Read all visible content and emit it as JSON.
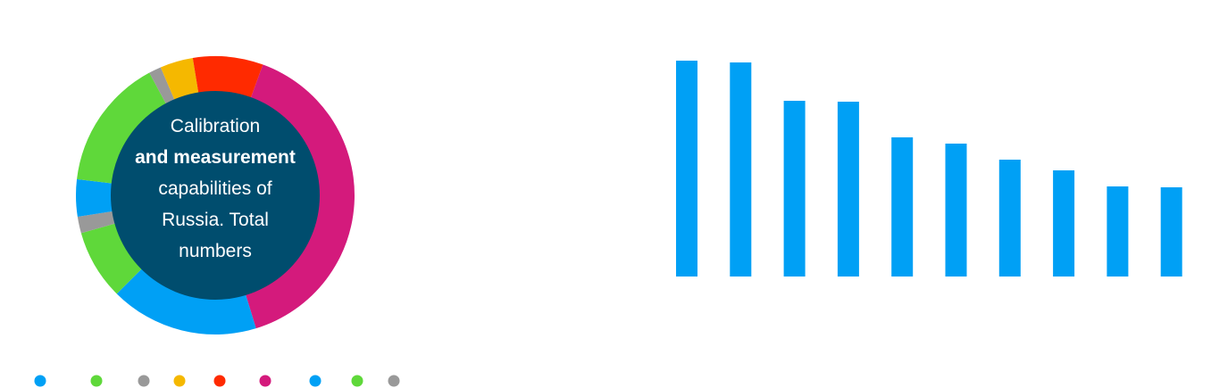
{
  "chart_data": [
    {
      "type": "pie",
      "style": "donut",
      "center_label": [
        "Calibration",
        "and measurement",
        "capabilities of",
        "Russia. Total",
        "numbers"
      ],
      "center_bold_line": 1,
      "center_color": "#004d6e",
      "slices": [
        {
          "value": 41.5,
          "color": "#d41a7c"
        },
        {
          "value": 18.0,
          "color": "#00a0f5"
        },
        {
          "value": 8.5,
          "color": "#5fd83a"
        },
        {
          "value": 2.0,
          "color": "#999999"
        },
        {
          "value": 4.5,
          "color": "#00a0f5"
        },
        {
          "value": 16.0,
          "color": "#5fd83a"
        },
        {
          "value": 1.5,
          "color": "#999999"
        },
        {
          "value": 4.0,
          "color": "#f5b800"
        },
        {
          "value": 8.5,
          "color": "#ff2a00"
        }
      ],
      "legend_colors": [
        "#00a0f5",
        "#5fd83a",
        "#999999",
        "#f5b800",
        "#ff2a00",
        "#d41a7c",
        "#00a0f5",
        "#5fd83a",
        "#999999"
      ],
      "legend": "bottom-left"
    },
    {
      "type": "bar",
      "values": [
        242,
        240,
        197,
        196,
        156,
        149,
        131,
        119,
        101,
        100
      ],
      "ylim": [
        0,
        250
      ],
      "color": "#00a0f5",
      "grid": false
    }
  ]
}
